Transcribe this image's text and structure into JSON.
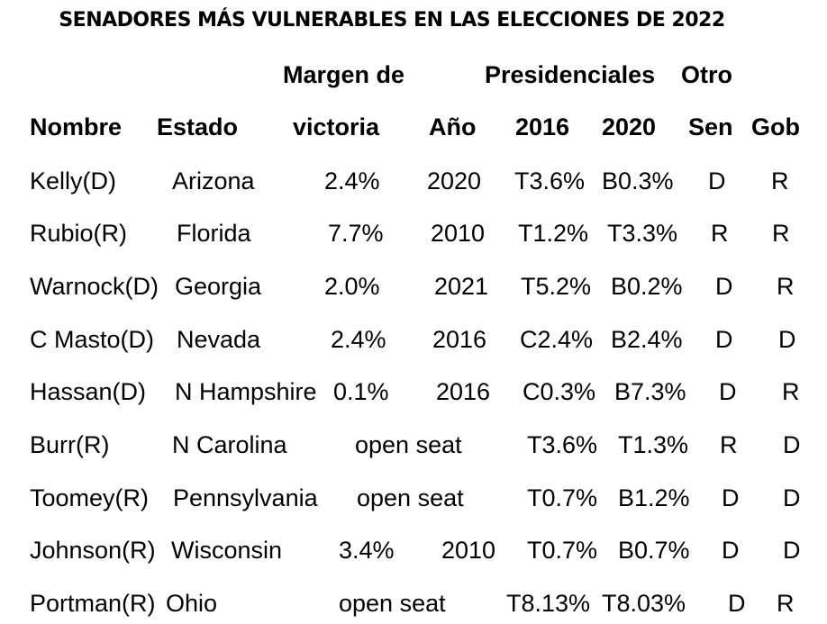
{
  "title": "SENADORES MÁS VULNERABLES EN LAS ELECCIONES DE 2022",
  "header": {
    "margin_top": "Margen de",
    "presidential_top": "Presidenciales",
    "other_top": "Otro",
    "name": "Nombre",
    "state": "Estado",
    "margin": "victoria",
    "year": "Año",
    "y2016": "2016",
    "y2020": "2020",
    "sen": "Sen",
    "gov": "Gob"
  },
  "rows": [
    {
      "name": "Kelly(D)",
      "state": "Arizona",
      "margin": "2.4%",
      "year": "2020",
      "p2016": "T3.6%",
      "p2020": "B0.3%",
      "sen": "D",
      "gov": "R"
    },
    {
      "name": "Rubio(R)",
      "state": "Florida",
      "margin": "7.7%",
      "year": "2010",
      "p2016": "T1.2%",
      "p2020": "T3.3%",
      "sen": "R",
      "gov": "R"
    },
    {
      "name": "Warnock(D)",
      "state": "Georgia",
      "margin": "2.0%",
      "year": "2021",
      "p2016": "T5.2%",
      "p2020": "B0.2%",
      "sen": "D",
      "gov": "R"
    },
    {
      "name": "C Masto(D)",
      "state": "Nevada",
      "margin": "2.4%",
      "year": "2016",
      "p2016": "C2.4%",
      "p2020": "B2.4%",
      "sen": "D",
      "gov": "D"
    },
    {
      "name": "Hassan(D)",
      "state": "N Hampshire",
      "margin": "0.1%",
      "year": "2016",
      "p2016": "C0.3%",
      "p2020": "B7.3%",
      "sen": "D",
      "gov": "R"
    },
    {
      "name": "Burr(R)",
      "state": "N Carolina",
      "margin": "open seat",
      "year": "",
      "p2016": "T3.6%",
      "p2020": "T1.3%",
      "sen": "R",
      "gov": "D"
    },
    {
      "name": "Toomey(R)",
      "state": "Pennsylvania",
      "margin": "open seat",
      "year": "",
      "p2016": "T0.7%",
      "p2020": "B1.2%",
      "sen": "D",
      "gov": "D"
    },
    {
      "name": "Johnson(R)",
      "state": "Wisconsin",
      "margin": "3.4%",
      "year": "2010",
      "p2016": "T0.7%",
      "p2020": "B0.7%",
      "sen": "D",
      "gov": "D"
    },
    {
      "name": "Portman(R)",
      "state": "Ohio",
      "margin": "open seat",
      "year": "",
      "p2016": "T8.13%",
      "p2020": "T8.03%",
      "sen": "D",
      "gov": "R"
    }
  ]
}
